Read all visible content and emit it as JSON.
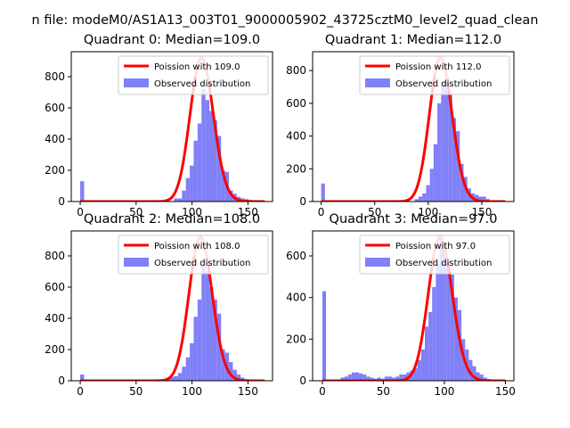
{
  "figure": {
    "suptitle": "n file: modeM0/AS1A13_003T01_9000005902_43725cztM0_level2_quad_clean"
  },
  "chart_data": [
    {
      "type": "bar",
      "title": "Quadrant 0: Median=109.0",
      "xlim": [
        -8,
        172
      ],
      "ylim": [
        0,
        960
      ],
      "xticks": [
        0,
        50,
        100,
        150
      ],
      "yticks": [
        0,
        200,
        400,
        600,
        800
      ],
      "legend_position": "top-right",
      "legend": [
        "Poission with 109.0",
        "Observed distribution"
      ],
      "hist": {
        "bin_width": 3.5,
        "counts": [
          {
            "x": 0,
            "y": 130
          },
          {
            "x": 84,
            "y": 20
          },
          {
            "x": 87.5,
            "y": 20
          },
          {
            "x": 91,
            "y": 70
          },
          {
            "x": 94.5,
            "y": 150
          },
          {
            "x": 98,
            "y": 230
          },
          {
            "x": 101.5,
            "y": 390
          },
          {
            "x": 105,
            "y": 500
          },
          {
            "x": 108.5,
            "y": 720
          },
          {
            "x": 112,
            "y": 650
          },
          {
            "x": 115.5,
            "y": 580
          },
          {
            "x": 119,
            "y": 520
          },
          {
            "x": 122.5,
            "y": 420
          },
          {
            "x": 126,
            "y": 200
          },
          {
            "x": 129.5,
            "y": 190
          },
          {
            "x": 133,
            "y": 70
          },
          {
            "x": 136.5,
            "y": 50
          },
          {
            "x": 140,
            "y": 30
          },
          {
            "x": 143.5,
            "y": 20
          },
          {
            "x": 147,
            "y": 15
          },
          {
            "x": 150.5,
            "y": 10
          },
          {
            "x": 154,
            "y": 5
          }
        ]
      },
      "poisson": {
        "mean": 109.0,
        "peak": 920,
        "range": [
          0,
          165
        ]
      }
    },
    {
      "type": "bar",
      "title": "Quadrant 1: Median=112.0",
      "xlim": [
        -8,
        180
      ],
      "ylim": [
        0,
        915
      ],
      "xticks": [
        0,
        50,
        100,
        150
      ],
      "yticks": [
        0,
        200,
        400,
        600,
        800
      ],
      "legend_position": "top-right",
      "legend": [
        "Poission with 112.0",
        "Observed distribution"
      ],
      "hist": {
        "bin_width": 3.5,
        "counts": [
          {
            "x": 0,
            "y": 110
          },
          {
            "x": 87.5,
            "y": 15
          },
          {
            "x": 91,
            "y": 30
          },
          {
            "x": 94.5,
            "y": 50
          },
          {
            "x": 98,
            "y": 100
          },
          {
            "x": 101.5,
            "y": 200
          },
          {
            "x": 105,
            "y": 350
          },
          {
            "x": 108.5,
            "y": 600
          },
          {
            "x": 112,
            "y": 730
          },
          {
            "x": 115.5,
            "y": 760
          },
          {
            "x": 119,
            "y": 660
          },
          {
            "x": 122.5,
            "y": 510
          },
          {
            "x": 126,
            "y": 430
          },
          {
            "x": 129.5,
            "y": 230
          },
          {
            "x": 133,
            "y": 150
          },
          {
            "x": 136.5,
            "y": 80
          },
          {
            "x": 140,
            "y": 50
          },
          {
            "x": 143.5,
            "y": 40
          },
          {
            "x": 147,
            "y": 30
          },
          {
            "x": 150.5,
            "y": 30
          },
          {
            "x": 154,
            "y": 15
          }
        ]
      },
      "poisson": {
        "mean": 112.0,
        "peak": 880,
        "range": [
          0,
          172
        ]
      }
    },
    {
      "type": "bar",
      "title": "Quadrant 2: Median=108.0",
      "xlim": [
        -8,
        172
      ],
      "ylim": [
        0,
        960
      ],
      "xticks": [
        0,
        50,
        100,
        150
      ],
      "yticks": [
        0,
        200,
        400,
        600,
        800
      ],
      "legend_position": "top-right",
      "legend": [
        "Poission with 108.0",
        "Observed distribution"
      ],
      "hist": {
        "bin_width": 3.5,
        "counts": [
          {
            "x": 0,
            "y": 40
          },
          {
            "x": 31.5,
            "y": 5
          },
          {
            "x": 52.5,
            "y": 5
          },
          {
            "x": 66.5,
            "y": 8
          },
          {
            "x": 77,
            "y": 20
          },
          {
            "x": 80.5,
            "y": 25
          },
          {
            "x": 84,
            "y": 30
          },
          {
            "x": 87.5,
            "y": 50
          },
          {
            "x": 91,
            "y": 90
          },
          {
            "x": 94.5,
            "y": 150
          },
          {
            "x": 98,
            "y": 240
          },
          {
            "x": 101.5,
            "y": 410
          },
          {
            "x": 105,
            "y": 520
          },
          {
            "x": 108.5,
            "y": 740
          },
          {
            "x": 112,
            "y": 700
          },
          {
            "x": 115.5,
            "y": 600
          },
          {
            "x": 119,
            "y": 520
          },
          {
            "x": 122.5,
            "y": 430
          },
          {
            "x": 126,
            "y": 200
          },
          {
            "x": 129.5,
            "y": 180
          },
          {
            "x": 133,
            "y": 120
          },
          {
            "x": 136.5,
            "y": 70
          },
          {
            "x": 140,
            "y": 40
          },
          {
            "x": 143.5,
            "y": 20
          },
          {
            "x": 147,
            "y": 10
          },
          {
            "x": 150.5,
            "y": 8
          },
          {
            "x": 154,
            "y": 5
          }
        ]
      },
      "poisson": {
        "mean": 108.0,
        "peak": 920,
        "range": [
          0,
          165
        ]
      }
    },
    {
      "type": "bar",
      "title": "Quadrant 3: Median=97.0",
      "xlim": [
        -8,
        157
      ],
      "ylim": [
        0,
        720
      ],
      "xticks": [
        0,
        50,
        100,
        150
      ],
      "yticks": [
        0,
        200,
        400,
        600
      ],
      "legend_position": "top-right",
      "legend": [
        "Poission with 97.0",
        "Observed distribution"
      ],
      "hist": {
        "bin_width": 3.0,
        "counts": [
          {
            "x": 0,
            "y": 430
          },
          {
            "x": 15,
            "y": 15
          },
          {
            "x": 18,
            "y": 20
          },
          {
            "x": 21,
            "y": 30
          },
          {
            "x": 24,
            "y": 40
          },
          {
            "x": 27,
            "y": 40
          },
          {
            "x": 30,
            "y": 35
          },
          {
            "x": 33,
            "y": 30
          },
          {
            "x": 36,
            "y": 20
          },
          {
            "x": 39,
            "y": 15
          },
          {
            "x": 42,
            "y": 10
          },
          {
            "x": 45,
            "y": 15
          },
          {
            "x": 48,
            "y": 10
          },
          {
            "x": 51,
            "y": 20
          },
          {
            "x": 54,
            "y": 20
          },
          {
            "x": 57,
            "y": 15
          },
          {
            "x": 60,
            "y": 20
          },
          {
            "x": 63,
            "y": 30
          },
          {
            "x": 66,
            "y": 30
          },
          {
            "x": 69,
            "y": 40
          },
          {
            "x": 72,
            "y": 50
          },
          {
            "x": 75,
            "y": 60
          },
          {
            "x": 78,
            "y": 100
          },
          {
            "x": 81,
            "y": 150
          },
          {
            "x": 84,
            "y": 260
          },
          {
            "x": 87,
            "y": 330
          },
          {
            "x": 90,
            "y": 450
          },
          {
            "x": 93,
            "y": 560
          },
          {
            "x": 96,
            "y": 690
          },
          {
            "x": 99,
            "y": 650
          },
          {
            "x": 102,
            "y": 580
          },
          {
            "x": 105,
            "y": 510
          },
          {
            "x": 108,
            "y": 400
          },
          {
            "x": 111,
            "y": 340
          },
          {
            "x": 114,
            "y": 200
          },
          {
            "x": 117,
            "y": 150
          },
          {
            "x": 120,
            "y": 100
          },
          {
            "x": 123,
            "y": 70
          },
          {
            "x": 126,
            "y": 40
          },
          {
            "x": 129,
            "y": 30
          },
          {
            "x": 132,
            "y": 15
          },
          {
            "x": 135,
            "y": 8
          }
        ]
      },
      "poisson": {
        "mean": 97.0,
        "peak": 690,
        "range": [
          0,
          150
        ]
      }
    }
  ],
  "colors": {
    "hist_fill": "#8080f7",
    "poisson_line": "#ff0000",
    "poisson_peak": "#ff8080"
  }
}
